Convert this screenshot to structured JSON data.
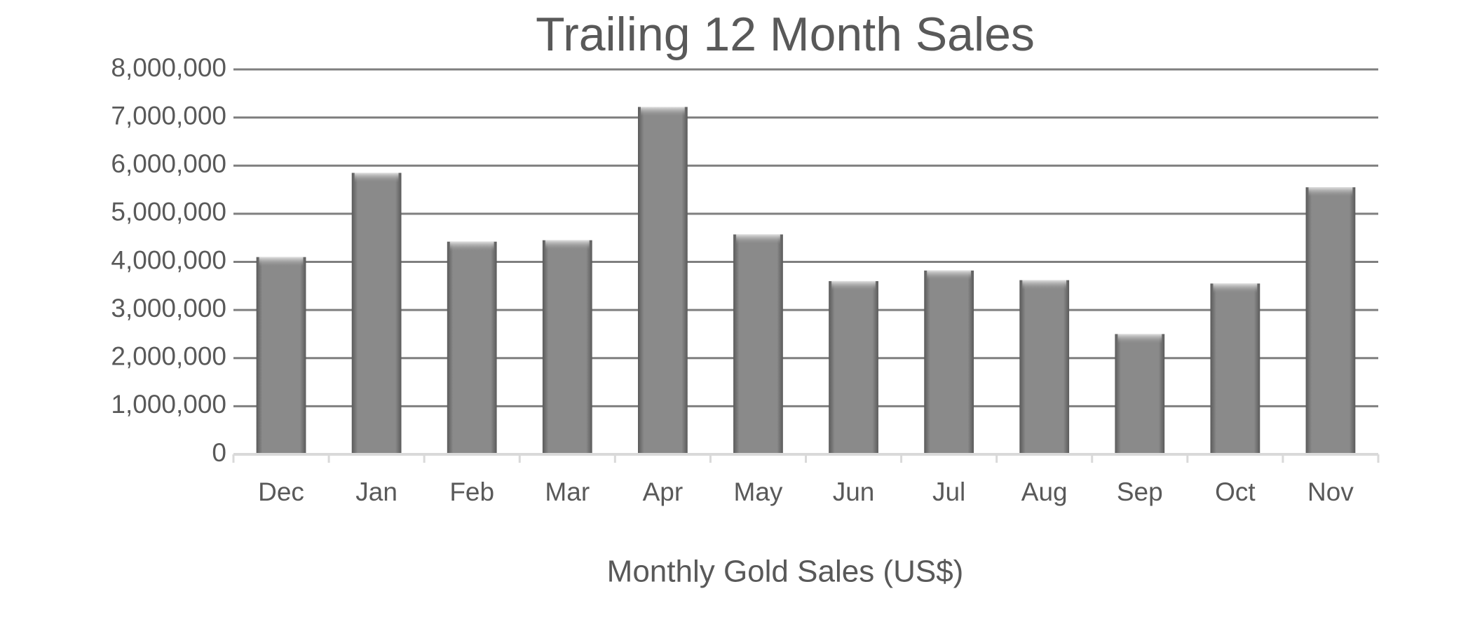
{
  "chart_data": {
    "type": "bar",
    "title": "Trailing 12 Month Sales",
    "x_label": "Monthly Gold Sales (US$)",
    "categories": [
      "Dec",
      "Jan",
      "Feb",
      "Mar",
      "Apr",
      "May",
      "Jun",
      "Jul",
      "Aug",
      "Sep",
      "Oct",
      "Nov"
    ],
    "values": [
      4100000,
      5850000,
      4420000,
      4450000,
      7220000,
      4570000,
      3600000,
      3820000,
      3620000,
      2500000,
      3550000,
      5550000
    ],
    "color": "#808080",
    "ylim": [
      0,
      8000000
    ],
    "yticks": [
      0,
      {
        "value": 1000000,
        "label": "1,000,000"
      },
      {
        "value": 2000000,
        "label": "2,000,000"
      },
      {
        "value": 3000000,
        "label": "3,000,000"
      },
      {
        "value": 4000000,
        "label": "4,000,000"
      },
      {
        "value": 5000000,
        "label": "5,000,000"
      },
      {
        "value": 6000000,
        "label": "6,000,000"
      },
      {
        "value": 7000000,
        "label": "7,000,000"
      },
      {
        "value": 8000000,
        "label": "8,000,000"
      }
    ],
    "grid": true
  }
}
